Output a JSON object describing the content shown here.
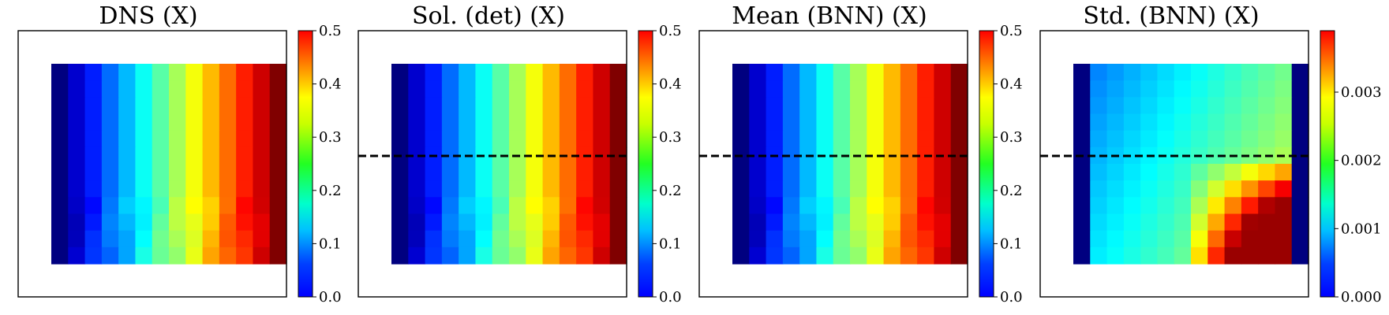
{
  "chart_data": [
    {
      "type": "heatmap",
      "title": "DNS (X)",
      "colormap": "jet",
      "colorbar": {
        "range": [
          0.0,
          0.5
        ],
        "ticks": [
          0.0,
          0.1,
          0.2,
          0.3,
          0.4,
          0.5
        ],
        "tick_labels": [
          "0.0",
          "0.1",
          "0.2",
          "0.3",
          "0.4",
          "0.5"
        ]
      },
      "dashed_line": false,
      "grid_cols": 14,
      "grid_rows": 12,
      "field": "linear_x",
      "cell_values_pattern": {
        "min": 0.0,
        "max": 0.5,
        "direction": "left-to-right"
      }
    },
    {
      "type": "heatmap",
      "title": "Sol. (det) (X)",
      "colormap": "jet",
      "colorbar": {
        "range": [
          0.0,
          0.5
        ],
        "ticks": [
          0.0,
          0.1,
          0.2,
          0.3,
          0.4,
          0.5
        ],
        "tick_labels": [
          "0.0",
          "0.1",
          "0.2",
          "0.3",
          "0.4",
          "0.5"
        ]
      },
      "dashed_line": true,
      "grid_cols": 14,
      "grid_rows": 12,
      "field": "linear_x",
      "cell_values_pattern": {
        "min": 0.0,
        "max": 0.5,
        "direction": "left-to-right"
      }
    },
    {
      "type": "heatmap",
      "title": "Mean (BNN) (X)",
      "colormap": "jet",
      "colorbar": {
        "range": [
          0.0,
          0.5
        ],
        "ticks": [
          0.0,
          0.1,
          0.2,
          0.3,
          0.4,
          0.5
        ],
        "tick_labels": [
          "0.0",
          "0.1",
          "0.2",
          "0.3",
          "0.4",
          "0.5"
        ]
      },
      "dashed_line": true,
      "grid_cols": 14,
      "grid_rows": 12,
      "field": "linear_x",
      "cell_values_pattern": {
        "min": 0.0,
        "max": 0.5,
        "direction": "left-to-right"
      }
    },
    {
      "type": "heatmap",
      "title": "Std. (BNN) (X)",
      "colormap": "jet",
      "colorbar": {
        "range": [
          0.0,
          0.0039
        ],
        "ticks": [
          0.0,
          0.001,
          0.002,
          0.003
        ],
        "tick_labels": [
          "0.000",
          "0.001",
          "0.002",
          "0.003"
        ]
      },
      "dashed_line": true,
      "grid_cols": 14,
      "grid_rows": 12,
      "field": "std_pattern",
      "cell_values_pattern": {
        "boundary_columns": 0.0,
        "interior_min": 0.001,
        "interior_max": 0.0038,
        "peak_region": "lower-right interior"
      }
    }
  ]
}
